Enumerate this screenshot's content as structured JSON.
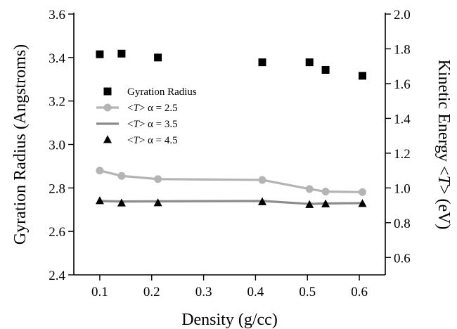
{
  "chart_data": {
    "type": "scatter",
    "xlabel": "Density (g/cc)",
    "ylabel_left": "Gyration Radius (Angstroms)",
    "ylabel_right": "Kinetic Energy <T> (eV)",
    "xlim": [
      0.05,
      0.65
    ],
    "ylim_left": [
      2.4,
      3.6
    ],
    "ylim_right": [
      0.5,
      2.0
    ],
    "x_ticks": [
      0.1,
      0.2,
      0.3,
      0.4,
      0.5,
      0.6
    ],
    "y_left_ticks": [
      2.4,
      2.6,
      2.8,
      3.0,
      3.2,
      3.4,
      3.6
    ],
    "y_right_ticks": [
      0.6,
      0.8,
      1.0,
      1.2,
      1.4,
      1.6,
      1.8,
      2.0
    ],
    "legend_position": "left-center",
    "grid": false,
    "series": [
      {
        "name": "Gyration Radius",
        "axis": "left",
        "marker": "square",
        "line": false,
        "color": "#000000",
        "x": [
          0.1,
          0.142,
          0.212,
          0.413,
          0.504,
          0.535,
          0.606
        ],
        "y": [
          3.415,
          3.418,
          3.4,
          3.378,
          3.378,
          3.343,
          3.316
        ]
      },
      {
        "name": "<T> α = 2.5",
        "axis": "right",
        "marker": "circle",
        "line": true,
        "color": "#b4b4b4",
        "x": [
          0.1,
          0.142,
          0.212,
          0.413,
          0.504,
          0.535,
          0.606
        ],
        "y": [
          1.1,
          1.069,
          1.051,
          1.046,
          0.994,
          0.979,
          0.976
        ]
      },
      {
        "name": "<T> α = 3.5",
        "axis": "right",
        "marker": "none",
        "line": true,
        "color": "#8c8c8c",
        "x": [
          0.1,
          0.142,
          0.212,
          0.413,
          0.504,
          0.535,
          0.606
        ],
        "y": [
          0.925,
          0.922,
          0.923,
          0.925,
          0.908,
          0.911,
          0.913
        ]
      },
      {
        "name": "<T> α = 4.5",
        "axis": "right",
        "marker": "triangle",
        "line": false,
        "color": "#000000",
        "x": [
          0.1,
          0.142,
          0.212,
          0.413,
          0.504,
          0.535,
          0.606
        ],
        "y": [
          0.925,
          0.912,
          0.913,
          0.919,
          0.903,
          0.907,
          0.909
        ]
      }
    ],
    "legend": [
      {
        "label": "Gyration Radius",
        "symbol": "square"
      },
      {
        "label_prefix": "<",
        "label_italic": "T",
        "label_suffix": "> α = 2.5",
        "symbol": "line-circle"
      },
      {
        "label_prefix": "<",
        "label_italic": "T",
        "label_suffix": "> α = 3.5",
        "symbol": "line"
      },
      {
        "label_prefix": "<",
        "label_italic": "T",
        "label_suffix": "> α = 4.5",
        "symbol": "triangle"
      }
    ]
  }
}
